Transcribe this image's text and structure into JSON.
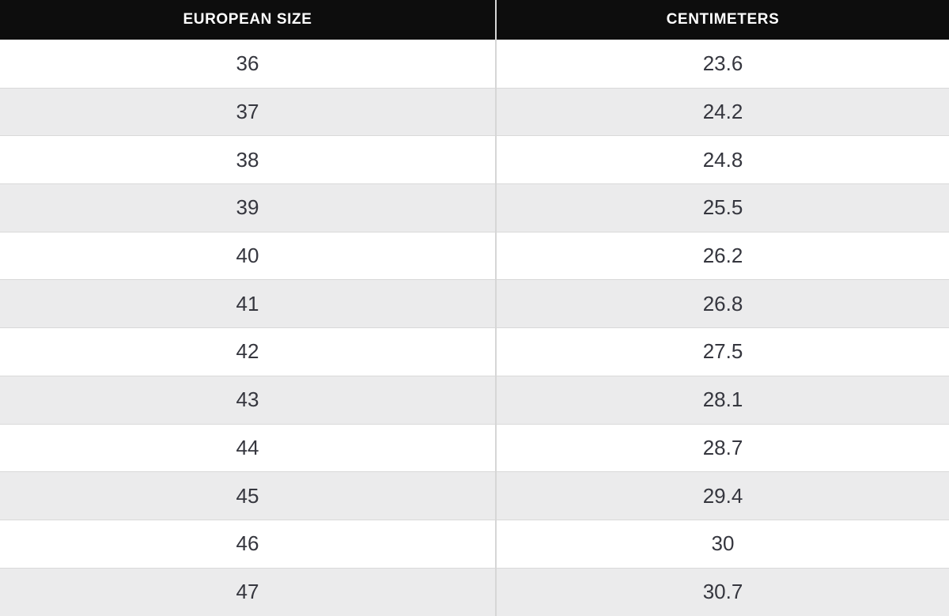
{
  "table": {
    "columns": [
      {
        "label": "EUROPEAN SIZE"
      },
      {
        "label": "CENTIMETERS"
      }
    ],
    "rows": [
      {
        "eu": "36",
        "cm": "23.6"
      },
      {
        "eu": "37",
        "cm": "24.2"
      },
      {
        "eu": "38",
        "cm": "24.8"
      },
      {
        "eu": "39",
        "cm": "25.5"
      },
      {
        "eu": "40",
        "cm": "26.2"
      },
      {
        "eu": "41",
        "cm": "26.8"
      },
      {
        "eu": "42",
        "cm": "27.5"
      },
      {
        "eu": "43",
        "cm": "28.1"
      },
      {
        "eu": "44",
        "cm": "28.7"
      },
      {
        "eu": "45",
        "cm": "29.4"
      },
      {
        "eu": "46",
        "cm": "30"
      },
      {
        "eu": "47",
        "cm": "30.7"
      }
    ]
  },
  "chart_data": {
    "type": "table",
    "title": "European shoe size to centimeters conversion",
    "columns": [
      "EUROPEAN SIZE",
      "CENTIMETERS"
    ],
    "rows": [
      [
        36,
        23.6
      ],
      [
        37,
        24.2
      ],
      [
        38,
        24.8
      ],
      [
        39,
        25.5
      ],
      [
        40,
        26.2
      ],
      [
        41,
        26.8
      ],
      [
        42,
        27.5
      ],
      [
        43,
        28.1
      ],
      [
        44,
        28.7
      ],
      [
        45,
        29.4
      ],
      [
        46,
        30
      ],
      [
        47,
        30.7
      ]
    ],
    "layout": {
      "header_position": "top",
      "alternating_row_shading": true,
      "last_row_clipped": true
    }
  },
  "colors": {
    "header_bg": "#0d0d0d",
    "header_text": "#ffffff",
    "row_bg": "#ffffff",
    "row_alt_bg": "#ebebec",
    "border": "#d9d9d9",
    "cell_text": "#35363e"
  }
}
